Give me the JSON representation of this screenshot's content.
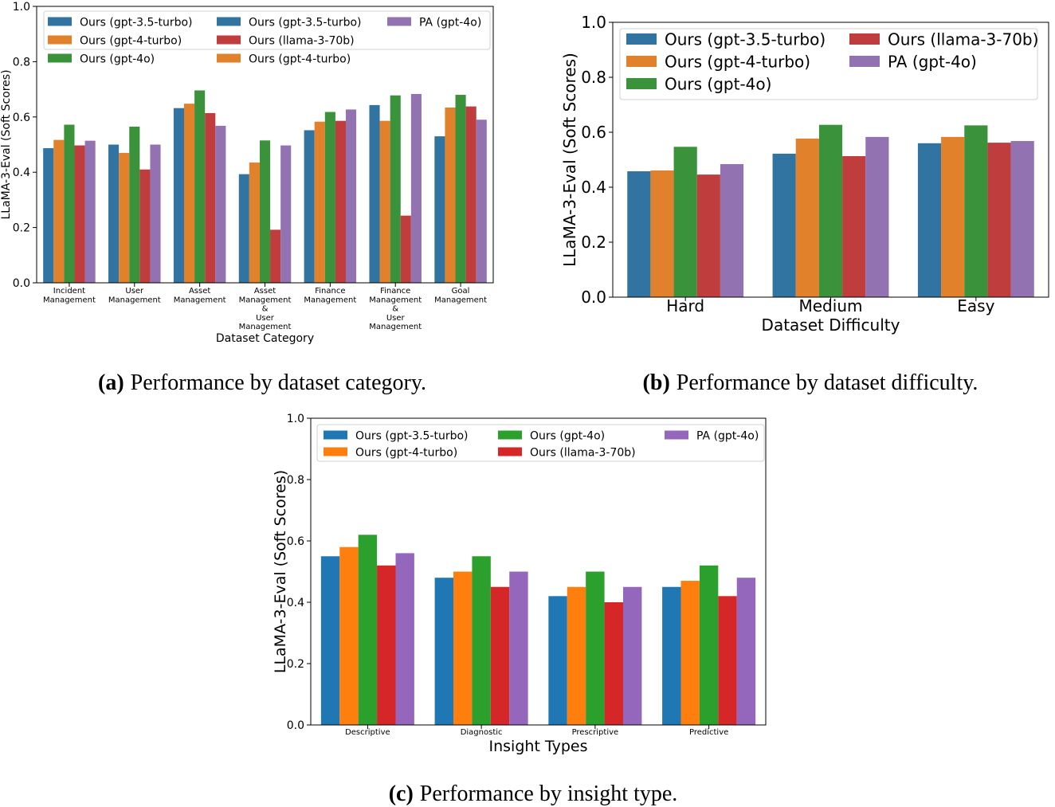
{
  "captions": [
    {
      "label": "(a)",
      "text": "Performance by dataset category."
    },
    {
      "label": "(b)",
      "text": "Performance by dataset difficulty."
    },
    {
      "label": "(c)",
      "text": "Performance by insight type."
    }
  ],
  "chart_data": [
    {
      "id": "a",
      "type": "bar",
      "title": "",
      "xlabel": "Dataset Category",
      "ylabel": "LLaMA-3-Eval (Soft Scores)",
      "ylim": [
        0,
        1.0
      ],
      "yticks": [
        "0.0",
        "0.2",
        "0.4",
        "0.6",
        "0.8",
        "1.0"
      ],
      "grid": false,
      "legend_position": "top",
      "categories": [
        [
          "Incident",
          "Management"
        ],
        [
          "User",
          "Management"
        ],
        [
          "Asset",
          "Management"
        ],
        [
          "Asset",
          "Management",
          "&",
          "User",
          "Management"
        ],
        [
          "Finance",
          "Management"
        ],
        [
          "Finance",
          "Management",
          "&",
          "User",
          "Management"
        ],
        [
          "Goal",
          "Management"
        ]
      ],
      "series": [
        {
          "name": "Ours (gpt-3.5-turbo)",
          "color": "#3274a1",
          "values": [
            0.487,
            0.5,
            0.632,
            0.393,
            0.552,
            0.643,
            0.53
          ]
        },
        {
          "name": "Ours (gpt-4-turbo)",
          "color": "#e1812c",
          "values": [
            0.517,
            0.47,
            0.648,
            0.435,
            0.583,
            0.586,
            0.634
          ]
        },
        {
          "name": "Ours (gpt-4o)",
          "color": "#3a923a",
          "values": [
            0.572,
            0.565,
            0.696,
            0.515,
            0.618,
            0.678,
            0.68
          ]
        },
        {
          "name": "Ours (llama-3-70b)",
          "color": "#c03d3e",
          "values": [
            0.497,
            0.41,
            0.614,
            0.192,
            0.586,
            0.243,
            0.638
          ]
        },
        {
          "name": "PA (gpt-4o)",
          "color": "#9372b2",
          "values": [
            0.514,
            0.5,
            0.568,
            0.497,
            0.627,
            0.683,
            0.59
          ]
        }
      ]
    },
    {
      "id": "b",
      "type": "bar",
      "title": "",
      "xlabel": "Dataset Difficulty",
      "ylabel": "LLaMA-3-Eval (Soft Scores)",
      "ylim": [
        0,
        1.0
      ],
      "yticks": [
        "0.0",
        "0.2",
        "0.4",
        "0.6",
        "0.8",
        "1.0"
      ],
      "grid": false,
      "legend_position": "top",
      "categories": [
        [
          "Hard"
        ],
        [
          "Medium"
        ],
        [
          "Easy"
        ]
      ],
      "series": [
        {
          "name": "Ours (gpt-3.5-turbo)",
          "color": "#3274a1",
          "values": [
            0.458,
            0.522,
            0.56
          ]
        },
        {
          "name": "Ours (gpt-4-turbo)",
          "color": "#e1812c",
          "values": [
            0.461,
            0.577,
            0.583
          ]
        },
        {
          "name": "Ours (gpt-4o)",
          "color": "#3a923a",
          "values": [
            0.547,
            0.627,
            0.625
          ]
        },
        {
          "name": "Ours (llama-3-70b)",
          "color": "#c03d3e",
          "values": [
            0.446,
            0.513,
            0.562
          ]
        },
        {
          "name": "PA (gpt-4o)",
          "color": "#9372b2",
          "values": [
            0.484,
            0.583,
            0.568
          ]
        }
      ]
    },
    {
      "id": "c",
      "type": "bar",
      "title": "",
      "xlabel": "Insight Types",
      "ylabel": "LLaMA-3-Eval (Soft Scores)",
      "ylim": [
        0,
        1.0
      ],
      "yticks": [
        "0.0",
        "0.2",
        "0.4",
        "0.6",
        "0.8",
        "1.0"
      ],
      "grid": false,
      "legend_position": "top",
      "categories": [
        [
          "Descriptive"
        ],
        [
          "Diagnostic"
        ],
        [
          "Prescriptive"
        ],
        [
          "Predictive"
        ]
      ],
      "series": [
        {
          "name": "Ours (gpt-3.5-turbo)",
          "color": "#1f77b4",
          "values": [
            0.55,
            0.48,
            0.42,
            0.45
          ]
        },
        {
          "name": "Ours (gpt-4-turbo)",
          "color": "#ff7f0e",
          "values": [
            0.58,
            0.5,
            0.45,
            0.47
          ]
        },
        {
          "name": "Ours (gpt-4o)",
          "color": "#2ca02c",
          "values": [
            0.62,
            0.55,
            0.5,
            0.52
          ]
        },
        {
          "name": "Ours (llama-3-70b)",
          "color": "#d62728",
          "values": [
            0.52,
            0.45,
            0.4,
            0.42
          ]
        },
        {
          "name": "PA (gpt-4o)",
          "color": "#9467bd",
          "values": [
            0.56,
            0.5,
            0.45,
            0.48
          ]
        }
      ]
    }
  ]
}
